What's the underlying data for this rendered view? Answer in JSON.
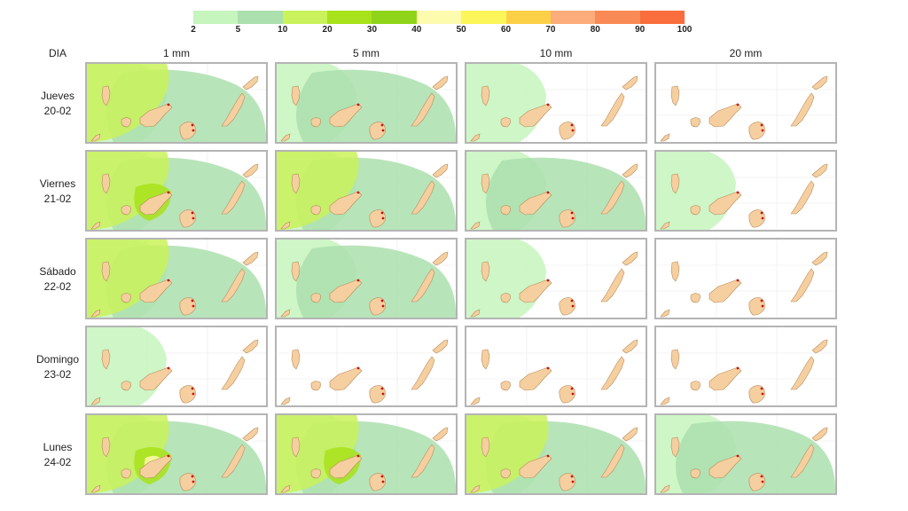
{
  "legend": {
    "ticks": [
      "2",
      "5",
      "10",
      "20",
      "30",
      "40",
      "50",
      "60",
      "70",
      "80",
      "90",
      "100"
    ],
    "colors": [
      "#c6f5bd",
      "#acdfae",
      "#c9f25b",
      "#a8e21a",
      "#90d41a",
      "#fdfbae",
      "#fdf65a",
      "#fcd046",
      "#fbac7a",
      "#fa8a55",
      "#f96e3c"
    ]
  },
  "header": {
    "dia": "DIA",
    "thresholds": [
      "1 mm",
      "5 mm",
      "10 mm",
      "20 mm"
    ]
  },
  "days": [
    {
      "name": "Jueves",
      "date": "20-02"
    },
    {
      "name": "Viernes",
      "date": "21-02"
    },
    {
      "name": "Sábado",
      "date": "22-02"
    },
    {
      "name": "Domingo",
      "date": "23-02"
    },
    {
      "name": "Lunes",
      "date": "24-02"
    }
  ],
  "map_style": {
    "land_color": "#f6cfa0",
    "land_outline": "#b88c5a",
    "marker_color": "#cc1010",
    "grid_color": "#e8e8e8"
  },
  "islands": [
    "La Palma",
    "El Hierro",
    "La Gomera",
    "Tenerife",
    "Gran Canaria",
    "Fuerteventura",
    "Lanzarote"
  ]
}
